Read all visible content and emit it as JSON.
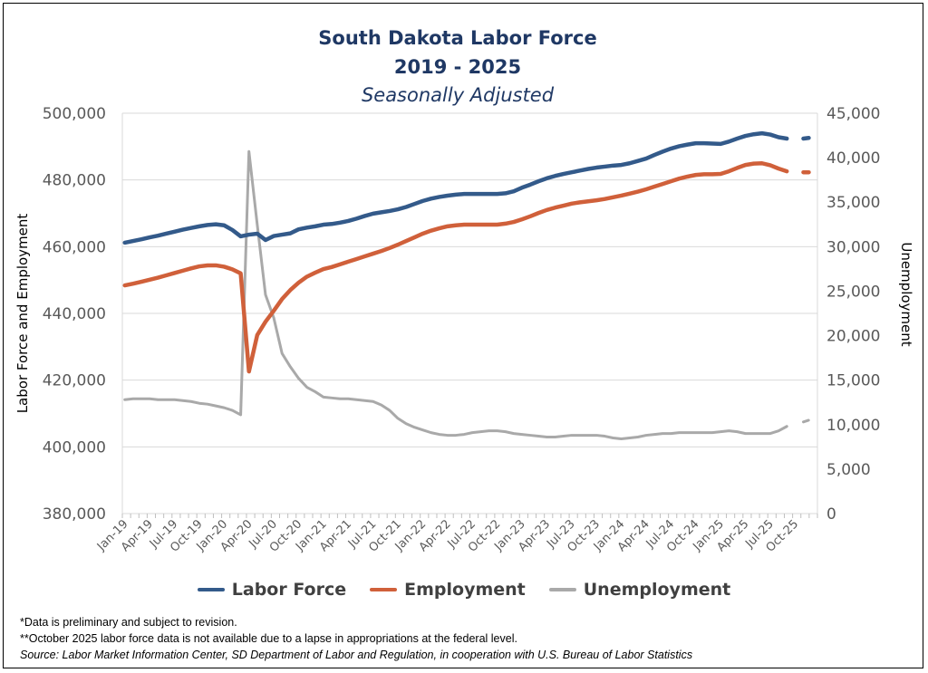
{
  "chart_data": {
    "type": "line",
    "title": "South Dakota Labor Force",
    "subtitle": "2019 - 2025",
    "subtitle2": "Seasonally Adjusted",
    "ylabel": "Labor  Force and Employment",
    "y2label": "Unemployment",
    "ylim": [
      380000,
      500000
    ],
    "y2lim": [
      0,
      45000
    ],
    "yticks": [
      "380,000",
      "400,000",
      "420,000",
      "440,000",
      "460,000",
      "480,000",
      "500,000"
    ],
    "y2ticks": [
      "0",
      "5,000",
      "10,000",
      "15,000",
      "20,000",
      "25,000",
      "30,000",
      "35,000",
      "40,000",
      "45,000"
    ],
    "x_start": "Jan-19",
    "x_frequency": "monthly",
    "xtick_labels": [
      "Jan-19",
      "Apr-19",
      "Jul-19",
      "Oct-19",
      "Jan-20",
      "Apr-20",
      "Jul-20",
      "Oct-20",
      "Jan-21",
      "Apr-21",
      "Jul-21",
      "Oct-21",
      "Jan-22",
      "Apr-22",
      "Jul-22",
      "Oct-22",
      "Jan-23",
      "Apr-23",
      "Jul-23",
      "Oct-23",
      "Jan-24",
      "Apr-24",
      "Jul-24",
      "Oct-24",
      "Jan-25",
      "Apr-25",
      "Jul-25",
      "Oct-25"
    ],
    "grid": true,
    "legend_position": "bottom",
    "series": [
      {
        "name": "Labor Force",
        "axis": "left",
        "color": "#335a8a",
        "unit": "thousands",
        "values": [
          461.2,
          461.7,
          462.2,
          462.8,
          463.3,
          463.9,
          464.5,
          465.1,
          465.6,
          466.1,
          466.5,
          466.7,
          466.4,
          465.0,
          463.1,
          463.6,
          463.9,
          462.0,
          463.2,
          463.6,
          464.0,
          465.2,
          465.7,
          466.1,
          466.6,
          466.8,
          467.2,
          467.7,
          468.4,
          469.2,
          469.9,
          470.3,
          470.7,
          471.2,
          471.9,
          472.8,
          473.7,
          474.4,
          474.9,
          475.3,
          475.6,
          475.8,
          475.8,
          475.8,
          475.8,
          475.8,
          476.0,
          476.6,
          477.7,
          478.6,
          479.6,
          480.5,
          481.2,
          481.8,
          482.3,
          482.8,
          483.3,
          483.7,
          484.0,
          484.3,
          484.5,
          485.0,
          485.7,
          486.4,
          487.5,
          488.5,
          489.4,
          490.1,
          490.6,
          491.0,
          491.0,
          490.9,
          490.8,
          491.5,
          492.4,
          493.2,
          493.7,
          494.0,
          493.6,
          492.8,
          492.4,
          null,
          492.4,
          492.7
        ]
      },
      {
        "name": "Employment",
        "axis": "left",
        "color": "#d0603a",
        "unit": "thousands",
        "values": [
          448.4,
          448.9,
          449.5,
          450.1,
          450.7,
          451.4,
          452.1,
          452.8,
          453.5,
          454.1,
          454.4,
          454.4,
          454.0,
          453.2,
          452.0,
          422.6,
          433.5,
          437.5,
          440.8,
          444.3,
          447.0,
          449.2,
          451.0,
          452.2,
          453.3,
          453.9,
          454.7,
          455.5,
          456.3,
          457.1,
          457.9,
          458.7,
          459.6,
          460.6,
          461.7,
          462.8,
          463.9,
          464.8,
          465.5,
          466.1,
          466.4,
          466.6,
          466.6,
          466.6,
          466.6,
          466.6,
          466.9,
          467.4,
          468.2,
          469.1,
          470.1,
          471.0,
          471.7,
          472.3,
          472.9,
          473.3,
          473.6,
          473.9,
          474.3,
          474.8,
          475.3,
          475.9,
          476.5,
          477.2,
          478.0,
          478.8,
          479.6,
          480.4,
          481.0,
          481.5,
          481.7,
          481.7,
          481.8,
          482.6,
          483.6,
          484.5,
          484.9,
          485.0,
          484.4,
          483.4,
          482.6,
          null,
          482.3,
          482.3
        ]
      },
      {
        "name": "Unemployment",
        "axis": "right",
        "color": "#a9a9a9",
        "unit": "thousands",
        "values": [
          12.8,
          12.9,
          12.9,
          12.9,
          12.8,
          12.8,
          12.8,
          12.7,
          12.6,
          12.4,
          12.3,
          12.1,
          11.9,
          11.6,
          11.1,
          40.7,
          32.5,
          24.6,
          22.0,
          18.0,
          16.5,
          15.2,
          14.2,
          13.7,
          13.1,
          13.0,
          12.9,
          12.9,
          12.8,
          12.7,
          12.6,
          12.2,
          11.6,
          10.7,
          10.1,
          9.7,
          9.4,
          9.1,
          8.9,
          8.8,
          8.8,
          8.9,
          9.1,
          9.2,
          9.3,
          9.3,
          9.2,
          9.0,
          8.9,
          8.8,
          8.7,
          8.6,
          8.6,
          8.7,
          8.8,
          8.8,
          8.8,
          8.8,
          8.7,
          8.5,
          8.4,
          8.5,
          8.6,
          8.8,
          8.9,
          9.0,
          9.0,
          9.1,
          9.1,
          9.1,
          9.1,
          9.1,
          9.2,
          9.3,
          9.2,
          9.0,
          9.0,
          9.0,
          9.0,
          9.3,
          9.8,
          null,
          10.3,
          10.6
        ]
      }
    ],
    "dashed_after_gap": true
  },
  "footnotes": {
    "note1": "*Data is preliminary and subject to revision.",
    "note2": "**October 2025 labor force data is not available due to a lapse in appropriations at the federal level.",
    "source": "Source: Labor Market Information Center, SD Department of Labor and Regulation, in cooperation with U.S. Bureau of Labor Statistics"
  }
}
